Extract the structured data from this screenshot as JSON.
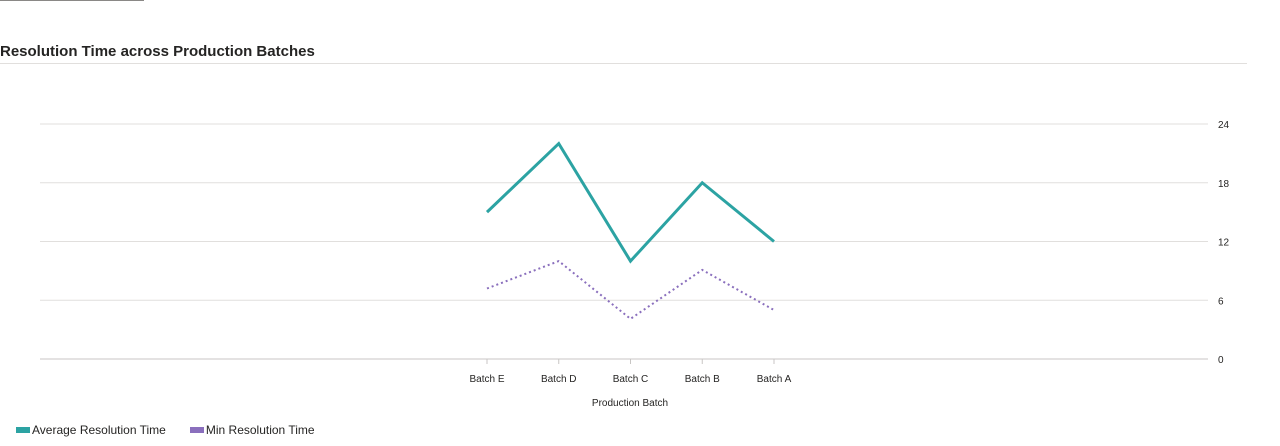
{
  "chart_data": {
    "type": "line",
    "title": "Resolution Time across Production Batches",
    "xlabel": "Production Batch",
    "ylabel": "",
    "categories": [
      "Batch E",
      "Batch D",
      "Batch C",
      "Batch B",
      "Batch A"
    ],
    "ylim": [
      0,
      24
    ],
    "yticks": [
      0,
      6,
      12,
      18,
      24
    ],
    "y_axis_position": "right",
    "grid": true,
    "legend_position": "bottom-left",
    "series": [
      {
        "name": "Average Resolution Time",
        "values": [
          15,
          22,
          10,
          18,
          12
        ],
        "color": "#2ca3a3",
        "style": "solid"
      },
      {
        "name": "Min Resolution Time",
        "values": [
          7.2,
          10,
          4.1,
          9.1,
          5
        ],
        "color": "#8a6fbd",
        "style": "dotted"
      }
    ]
  }
}
